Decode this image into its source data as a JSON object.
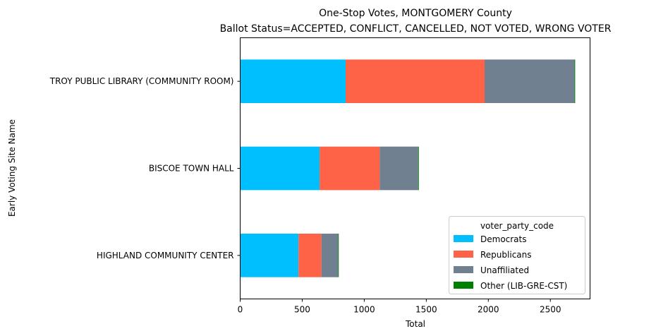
{
  "chart_data": {
    "type": "bar",
    "orientation": "horizontal",
    "stacked": true,
    "title": "One-Stop Votes, MONTGOMERY County",
    "subtitle": "Ballot Status=ACCEPTED, CONFLICT, CANCELLED, NOT VOTED, WRONG VOTER",
    "xlabel": "Total",
    "ylabel": "Early Voting Site Name",
    "xlim": [
      0,
      2820
    ],
    "xticks": [
      0,
      500,
      1000,
      1500,
      2000,
      2500
    ],
    "categories": [
      "TROY PUBLIC LIBRARY (COMMUNITY ROOM)",
      "BISCOE TOWN HALL",
      "HIGHLAND COMMUNITY CENTER"
    ],
    "series": [
      {
        "name": "Democrats",
        "color": "#00bfff",
        "values": [
          850,
          640,
          470
        ]
      },
      {
        "name": "Republicans",
        "color": "#ff6347",
        "values": [
          1120,
          485,
          185
        ]
      },
      {
        "name": "Unaffiliated",
        "color": "#708090",
        "values": [
          725,
          310,
          135
        ]
      },
      {
        "name": "Other (LIB-GRE-CST)",
        "color": "#008000",
        "values": [
          5,
          5,
          2
        ]
      }
    ],
    "legend": {
      "title": "voter_party_code",
      "position": "lower-right"
    },
    "grid": false
  }
}
